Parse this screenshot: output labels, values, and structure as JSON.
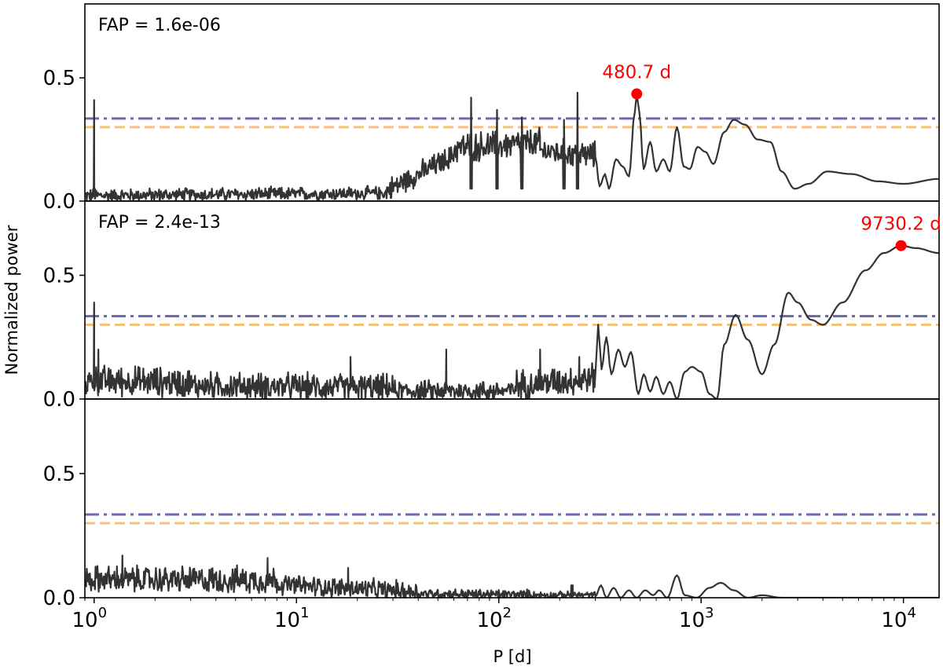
{
  "figure": {
    "xlabel": "P [d]",
    "ylabel": "Normalized power"
  },
  "chart_data": {
    "type": "line",
    "xscale": "log",
    "xlim": [
      0.9,
      15000
    ],
    "xticks": [
      {
        "value": 1,
        "base": "10",
        "exp": "0"
      },
      {
        "value": 10,
        "base": "10",
        "exp": "1"
      },
      {
        "value": 100,
        "base": "10",
        "exp": "2"
      },
      {
        "value": 1000,
        "base": "10",
        "exp": "3"
      },
      {
        "value": 10000,
        "base": "10",
        "exp": "4"
      }
    ],
    "xlabel": "P [d]",
    "ylabel": "Normalized power",
    "colors": {
      "line": "#333333",
      "fap_high": "#6b6bb5",
      "fap_low": "#f5c07a",
      "peak": "#ff0000"
    },
    "panels": [
      {
        "fap_text": "FAP = 1.6e-06",
        "ylim": [
          0,
          0.8
        ],
        "yticks": [
          {
            "value": 0.0,
            "label": "0.0"
          },
          {
            "value": 0.5,
            "label": "0.5"
          }
        ],
        "fap_lines": [
          0.335,
          0.3
        ],
        "peak": {
          "period": 480.7,
          "power": 0.435,
          "label": "480.7 d"
        },
        "noise_segments": [
          {
            "p_from": 0.9,
            "p_to": 28,
            "y_from": 0.02,
            "y_to": 0.03,
            "amp": 0.04
          },
          {
            "p_from": 28,
            "p_to": 60,
            "y_from": 0.04,
            "y_to": 0.18,
            "amp": 0.07
          },
          {
            "p_from": 60,
            "p_to": 160,
            "y_from": 0.21,
            "y_to": 0.23,
            "amp": 0.09
          },
          {
            "p_from": 160,
            "p_to": 300,
            "y_from": 0.2,
            "y_to": 0.18,
            "amp": 0.08
          }
        ],
        "spikes": [
          {
            "p": 1.0,
            "power": 0.41
          },
          {
            "p": 73,
            "power": 0.42
          },
          {
            "p": 98,
            "power": 0.37
          },
          {
            "p": 130,
            "power": 0.34
          },
          {
            "p": 245,
            "power": 0.44
          },
          {
            "p": 210,
            "power": 0.33
          }
        ],
        "curve": [
          [
            300,
            0.18
          ],
          [
            315,
            0.06
          ],
          [
            335,
            0.11
          ],
          [
            350,
            0.05
          ],
          [
            380,
            0.17
          ],
          [
            410,
            0.14
          ],
          [
            440,
            0.1
          ],
          [
            470,
            0.36
          ],
          [
            480.7,
            0.435
          ],
          [
            495,
            0.36
          ],
          [
            520,
            0.13
          ],
          [
            560,
            0.24
          ],
          [
            600,
            0.12
          ],
          [
            650,
            0.17
          ],
          [
            700,
            0.12
          ],
          [
            760,
            0.3
          ],
          [
            820,
            0.14
          ],
          [
            880,
            0.13
          ],
          [
            960,
            0.22
          ],
          [
            1050,
            0.2
          ],
          [
            1150,
            0.15
          ],
          [
            1300,
            0.28
          ],
          [
            1450,
            0.33
          ],
          [
            1650,
            0.31
          ],
          [
            1900,
            0.25
          ],
          [
            2200,
            0.24
          ],
          [
            2500,
            0.12
          ],
          [
            2900,
            0.05
          ],
          [
            3400,
            0.07
          ],
          [
            4200,
            0.12
          ],
          [
            5500,
            0.11
          ],
          [
            7500,
            0.08
          ],
          [
            10000,
            0.07
          ],
          [
            15000,
            0.09
          ]
        ]
      },
      {
        "fap_text": "FAP = 2.4e-13",
        "ylim": [
          0,
          0.8
        ],
        "yticks": [
          {
            "value": 0.0,
            "label": "0.0"
          },
          {
            "value": 0.5,
            "label": "0.5"
          }
        ],
        "fap_lines": [
          0.335,
          0.3
        ],
        "peak": {
          "period": 9730.2,
          "power": 0.62,
          "label": "9730.2 d"
        },
        "noise_segments": [
          {
            "p_from": 0.9,
            "p_to": 3,
            "y_from": 0.07,
            "y_to": 0.06,
            "amp": 0.09
          },
          {
            "p_from": 3,
            "p_to": 30,
            "y_from": 0.05,
            "y_to": 0.04,
            "amp": 0.08
          },
          {
            "p_from": 30,
            "p_to": 120,
            "y_from": 0.03,
            "y_to": 0.03,
            "amp": 0.06
          },
          {
            "p_from": 120,
            "p_to": 300,
            "y_from": 0.05,
            "y_to": 0.08,
            "amp": 0.09
          }
        ],
        "spikes": [
          {
            "p": 1.0,
            "power": 0.39
          },
          {
            "p": 1.05,
            "power": 0.2
          },
          {
            "p": 18.5,
            "power": 0.17
          },
          {
            "p": 55,
            "power": 0.2
          },
          {
            "p": 160,
            "power": 0.2
          },
          {
            "p": 250,
            "power": 0.17
          }
        ],
        "curve": [
          [
            300,
            0.1
          ],
          [
            310,
            0.3
          ],
          [
            322,
            0.12
          ],
          [
            340,
            0.25
          ],
          [
            360,
            0.1
          ],
          [
            390,
            0.2
          ],
          [
            420,
            0.13
          ],
          [
            450,
            0.19
          ],
          [
            490,
            0.02
          ],
          [
            520,
            0.1
          ],
          [
            560,
            0.03
          ],
          [
            600,
            0.09
          ],
          [
            650,
            0.02
          ],
          [
            700,
            0.07
          ],
          [
            760,
            0.0
          ],
          [
            830,
            0.11
          ],
          [
            900,
            0.13
          ],
          [
            1000,
            0.11
          ],
          [
            1100,
            0.02
          ],
          [
            1200,
            0.0
          ],
          [
            1300,
            0.22
          ],
          [
            1480,
            0.34
          ],
          [
            1700,
            0.24
          ],
          [
            2000,
            0.1
          ],
          [
            2300,
            0.22
          ],
          [
            2700,
            0.43
          ],
          [
            3000,
            0.39
          ],
          [
            3500,
            0.32
          ],
          [
            4000,
            0.3
          ],
          [
            5000,
            0.39
          ],
          [
            6500,
            0.52
          ],
          [
            8000,
            0.59
          ],
          [
            9730.2,
            0.62
          ],
          [
            11500,
            0.61
          ],
          [
            15000,
            0.59
          ]
        ]
      },
      {
        "fap_text": "",
        "ylim": [
          0,
          0.8
        ],
        "yticks": [
          {
            "value": 0.0,
            "label": "0.0"
          },
          {
            "value": 0.5,
            "label": "0.5"
          }
        ],
        "fap_lines": [
          0.335,
          0.3
        ],
        "peak": null,
        "noise_segments": [
          {
            "p_from": 0.9,
            "p_to": 8,
            "y_from": 0.07,
            "y_to": 0.065,
            "amp": 0.08
          },
          {
            "p_from": 8,
            "p_to": 40,
            "y_from": 0.05,
            "y_to": 0.02,
            "amp": 0.06
          },
          {
            "p_from": 40,
            "p_to": 150,
            "y_from": 0.015,
            "y_to": 0.01,
            "amp": 0.03
          },
          {
            "p_from": 150,
            "p_to": 300,
            "y_from": 0.01,
            "y_to": 0.01,
            "amp": 0.02
          }
        ],
        "spikes": [
          {
            "p": 1.38,
            "power": 0.17
          },
          {
            "p": 7.2,
            "power": 0.16
          },
          {
            "p": 18,
            "power": 0.12
          },
          {
            "p": 230,
            "power": 0.05
          }
        ],
        "curve": [
          [
            300,
            0.005
          ],
          [
            320,
            0.05
          ],
          [
            340,
            0.0
          ],
          [
            370,
            0.04
          ],
          [
            400,
            0.0
          ],
          [
            440,
            0.03
          ],
          [
            480,
            0.0
          ],
          [
            530,
            0.03
          ],
          [
            580,
            0.01
          ],
          [
            620,
            0.03
          ],
          [
            680,
            0.0
          ],
          [
            760,
            0.09
          ],
          [
            830,
            0.01
          ],
          [
            950,
            0.0
          ],
          [
            1100,
            0.04
          ],
          [
            1250,
            0.06
          ],
          [
            1450,
            0.03
          ],
          [
            1700,
            0.0
          ],
          [
            2000,
            0.01
          ],
          [
            2500,
            0.0
          ],
          [
            4000,
            0.0
          ],
          [
            15000,
            0.0
          ]
        ]
      }
    ]
  }
}
